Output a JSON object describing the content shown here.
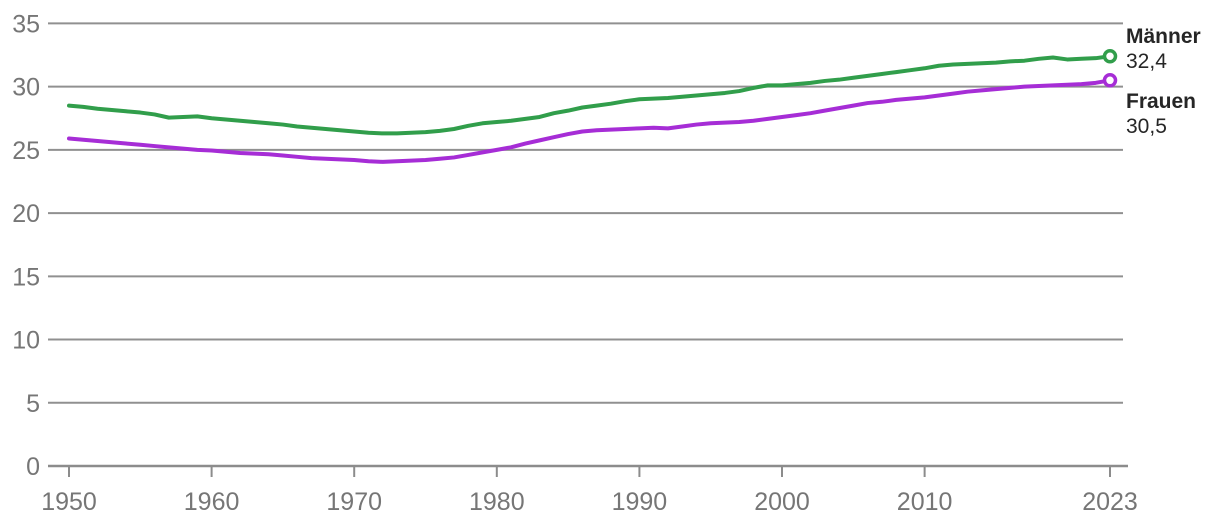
{
  "chart_data": {
    "type": "line",
    "title": "",
    "x": {
      "from": 1950,
      "to": 2023,
      "step": 1
    },
    "xticks": [
      1950,
      1960,
      1970,
      1980,
      1990,
      2000,
      2010,
      2023
    ],
    "yticks": [
      0,
      5,
      10,
      15,
      20,
      25,
      30,
      35
    ],
    "ylim": [
      0,
      35
    ],
    "grid": "horizontal",
    "legend_position": "end-of-line-right",
    "decimal_format": "comma",
    "series": [
      {
        "name": "Männer",
        "label": "Männer",
        "value_label": "32,4",
        "end_value": 32.4,
        "color": "#319e4b",
        "values": [
          28.5,
          28.4,
          28.25,
          28.15,
          28.05,
          27.95,
          27.8,
          27.55,
          27.6,
          27.65,
          27.5,
          27.4,
          27.3,
          27.2,
          27.1,
          27.0,
          26.85,
          26.75,
          26.65,
          26.55,
          26.45,
          26.35,
          26.3,
          26.3,
          26.35,
          26.4,
          26.5,
          26.65,
          26.9,
          27.1,
          27.2,
          27.3,
          27.45,
          27.6,
          27.9,
          28.1,
          28.35,
          28.5,
          28.65,
          28.85,
          29.0,
          29.05,
          29.1,
          29.2,
          29.3,
          29.4,
          29.5,
          29.65,
          29.9,
          30.1,
          30.1,
          30.2,
          30.3,
          30.45,
          30.55,
          30.7,
          30.85,
          31.0,
          31.15,
          31.3,
          31.45,
          31.65,
          31.75,
          31.8,
          31.85,
          31.9,
          32.0,
          32.05,
          32.2,
          32.3,
          32.15,
          32.2,
          32.25,
          32.4
        ]
      },
      {
        "name": "Frauen",
        "label": "Frauen",
        "value_label": "30,5",
        "end_value": 30.5,
        "color": "#a62dd6",
        "values": [
          25.9,
          25.8,
          25.7,
          25.6,
          25.5,
          25.4,
          25.3,
          25.2,
          25.1,
          25.0,
          24.95,
          24.85,
          24.75,
          24.7,
          24.65,
          24.55,
          24.45,
          24.35,
          24.3,
          24.25,
          24.2,
          24.1,
          24.05,
          24.1,
          24.15,
          24.2,
          24.3,
          24.4,
          24.6,
          24.8,
          25.0,
          25.2,
          25.5,
          25.75,
          26.0,
          26.25,
          26.45,
          26.55,
          26.6,
          26.65,
          26.7,
          26.75,
          26.7,
          26.85,
          27.0,
          27.1,
          27.15,
          27.2,
          27.3,
          27.45,
          27.6,
          27.75,
          27.9,
          28.1,
          28.3,
          28.5,
          28.7,
          28.8,
          28.95,
          29.05,
          29.15,
          29.3,
          29.45,
          29.6,
          29.7,
          29.8,
          29.9,
          30.0,
          30.05,
          30.1,
          30.15,
          30.2,
          30.3,
          30.5
        ]
      }
    ]
  },
  "colors": {
    "grid": "#909090",
    "axis_line": "#8c8c8c",
    "tick_text": "#767676",
    "label_text": "#262626",
    "marker_fill": "#ffffff",
    "background": "#ffffff"
  }
}
